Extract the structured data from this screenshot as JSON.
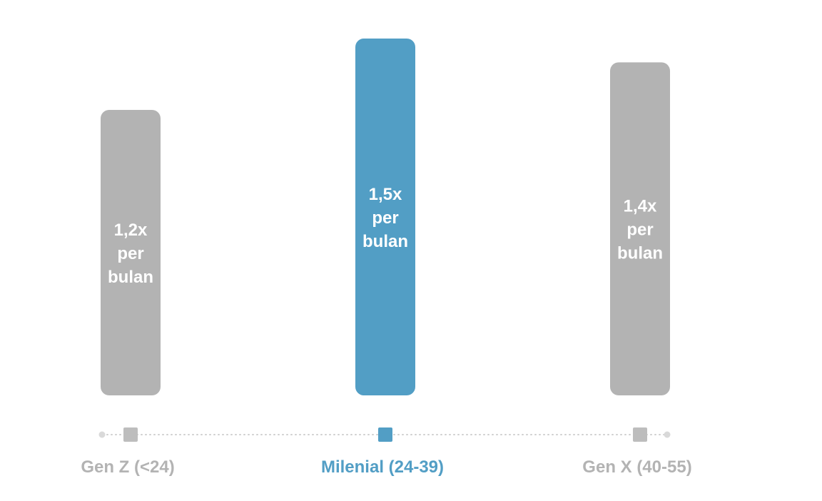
{
  "chart_data": {
    "type": "bar",
    "categories": [
      "Gen Z (<24)",
      "Milenial (24-39)",
      "Gen X (40-55)"
    ],
    "values": [
      1.2,
      1.5,
      1.4
    ],
    "data_labels": [
      [
        "1,2x",
        "per",
        "bulan"
      ],
      [
        "1,5x",
        "per",
        "bulan"
      ],
      [
        "1,4x",
        "per",
        "bulan"
      ]
    ],
    "highlight_index": 1,
    "ylim": [
      0,
      1.5
    ],
    "grid": false,
    "title": "",
    "xlabel": "",
    "ylabel": ""
  },
  "colors": {
    "default_bar": "#b3b3b3",
    "highlight_bar": "#529ec5",
    "default_label": "#b3b3b3",
    "highlight_label": "#529ec5",
    "axis_dots": "#cfcfcf",
    "axis_end": "#d9d9d9",
    "marker_default": "#bdbdbd"
  }
}
